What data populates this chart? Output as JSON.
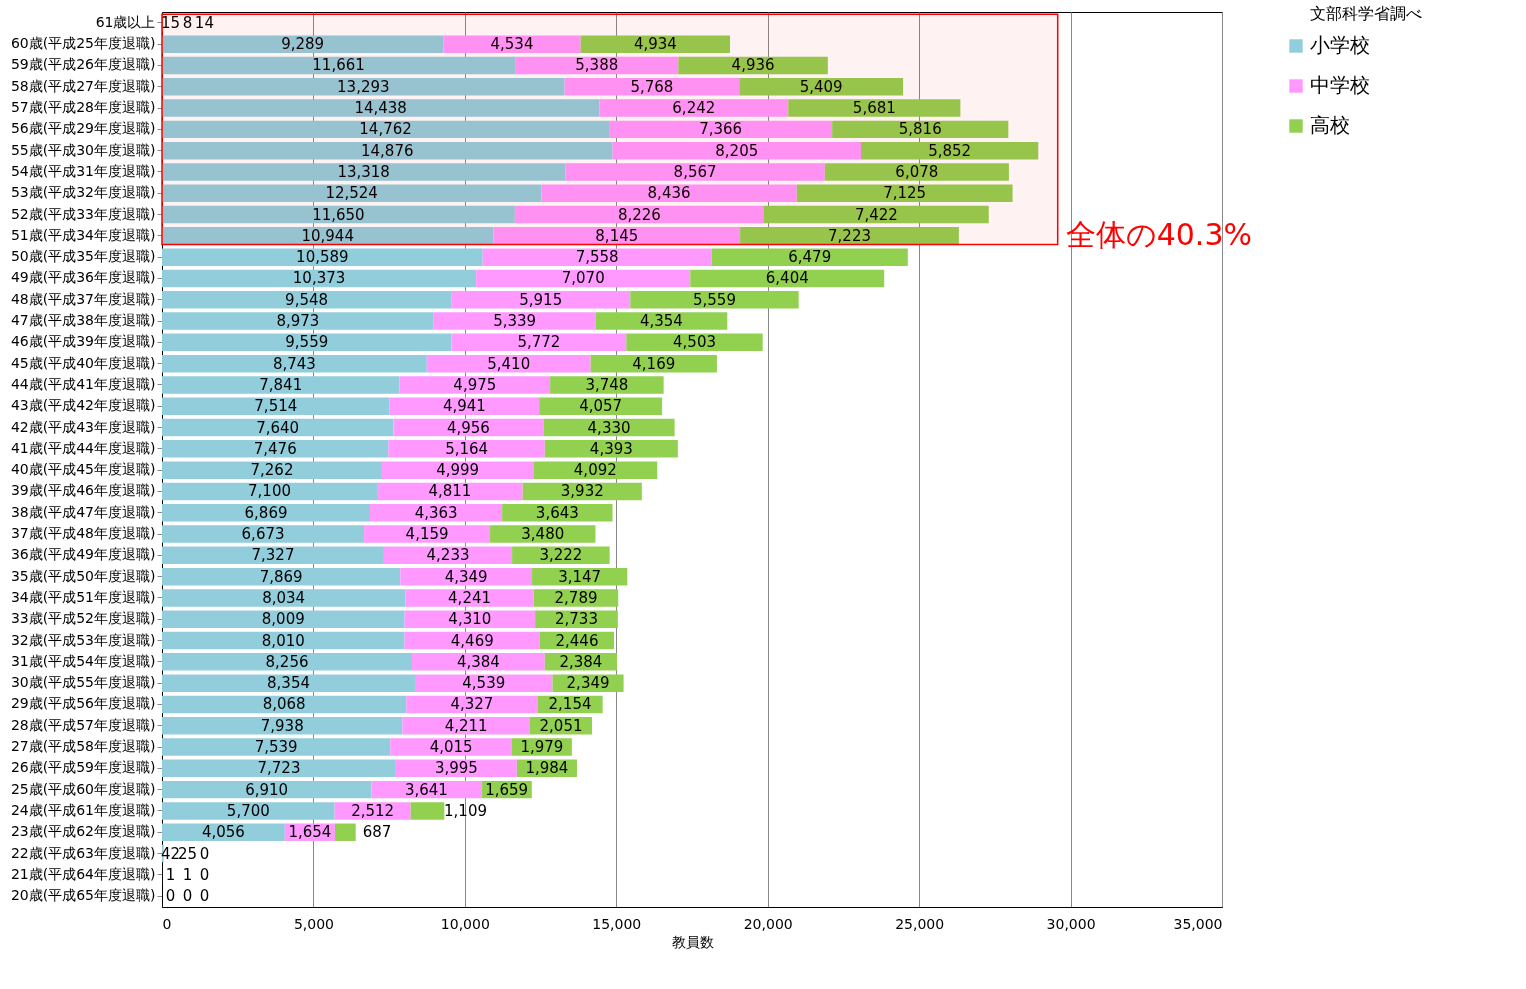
{
  "chart_data": {
    "type": "bar",
    "orientation": "horizontal",
    "stacked": true,
    "grid": "x",
    "legend": "right",
    "xlabel": "教員数",
    "annotations": [
      "文部科学省調べ"
    ],
    "bands": [
      {
        "axis": "y",
        "from": "61歳以上",
        "to": "51歳(平成34年度退職)",
        "label": "全体の40.3%",
        "color": "#ff0000"
      }
    ],
    "xlim": [
      0,
      35000
    ],
    "xticks": [
      {
        "value": 0,
        "label": "0"
      },
      {
        "value": 5000,
        "label": "5,000"
      },
      {
        "value": 10000,
        "label": "10,000"
      },
      {
        "value": 15000,
        "label": "15,000"
      },
      {
        "value": 20000,
        "label": "20,000"
      },
      {
        "value": 25000,
        "label": "25,000"
      },
      {
        "value": 30000,
        "label": "30,000"
      },
      {
        "value": 35000,
        "label": "35,000"
      }
    ],
    "categories": [
      "61歳以上",
      "60歳(平成25年度退職)",
      "59歳(平成26年度退職)",
      "58歳(平成27年度退職)",
      "57歳(平成28年度退職)",
      "56歳(平成29年度退職)",
      "55歳(平成30年度退職)",
      "54歳(平成31年度退職)",
      "53歳(平成32年度退職)",
      "52歳(平成33年度退職)",
      "51歳(平成34年度退職)",
      "50歳(平成35年度退職)",
      "49歳(平成36年度退職)",
      "48歳(平成37年度退職)",
      "47歳(平成38年度退職)",
      "46歳(平成39年度退職)",
      "45歳(平成40年度退職)",
      "44歳(平成41年度退職)",
      "43歳(平成42年度退職)",
      "42歳(平成43年度退職)",
      "41歳(平成44年度退職)",
      "40歳(平成45年度退職)",
      "39歳(平成46年度退職)",
      "38歳(平成47年度退職)",
      "37歳(平成48年度退職)",
      "36歳(平成49年度退職)",
      "35歳(平成50年度退職)",
      "34歳(平成51年度退職)",
      "33歳(平成52年度退職)",
      "32歳(平成53年度退職)",
      "31歳(平成54年度退職)",
      "30歳(平成55年度退職)",
      "29歳(平成56年度退職)",
      "28歳(平成57年度退職)",
      "27歳(平成58年度退職)",
      "26歳(平成59年度退職)",
      "25歳(平成60年度退職)",
      "24歳(平成61年度退職)",
      "23歳(平成62年度退職)",
      "22歳(平成63年度退職)",
      "21歳(平成64年度退職)",
      "20歳(平成65年度退職)"
    ],
    "series": [
      {
        "name": "小学校",
        "color": "#92cddc",
        "values": [
          15,
          9289,
          11661,
          13293,
          14438,
          14762,
          14876,
          13318,
          12524,
          11650,
          10944,
          10589,
          10373,
          9548,
          8973,
          9559,
          8743,
          7841,
          7514,
          7640,
          7476,
          7262,
          7100,
          6869,
          6673,
          7327,
          7869,
          8034,
          8009,
          8010,
          8256,
          8354,
          8068,
          7938,
          7539,
          7723,
          6910,
          5700,
          4056,
          42,
          1,
          0
        ],
        "value_labels": [
          "15",
          "9,289",
          "11,661",
          "13,293",
          "14,438",
          "14,762",
          "14,876",
          "13,318",
          "12,524",
          "11,650",
          "10,944",
          "10,589",
          "10,373",
          "9,548",
          "8,973",
          "9,559",
          "8,743",
          "7,841",
          "7,514",
          "7,640",
          "7,476",
          "7,262",
          "7,100",
          "6,869",
          "6,673",
          "7,327",
          "7,869",
          "8,034",
          "8,009",
          "8,010",
          "8,256",
          "8,354",
          "8,068",
          "7,938",
          "7,539",
          "7,723",
          "6,910",
          "5,700",
          "4,056",
          "42",
          "1",
          "0"
        ]
      },
      {
        "name": "中学校",
        "color": "#ff99ff",
        "values": [
          8,
          4534,
          5388,
          5768,
          6242,
          7366,
          8205,
          8567,
          8436,
          8226,
          8145,
          7558,
          7070,
          5915,
          5339,
          5772,
          5410,
          4975,
          4941,
          4956,
          5164,
          4999,
          4811,
          4363,
          4159,
          4233,
          4349,
          4241,
          4310,
          4469,
          4384,
          4539,
          4327,
          4211,
          4015,
          3995,
          3641,
          2512,
          1654,
          25,
          1,
          0
        ],
        "value_labels": [
          "8",
          "4,534",
          "5,388",
          "5,768",
          "6,242",
          "7,366",
          "8,205",
          "8,567",
          "8,436",
          "8,226",
          "8,145",
          "7,558",
          "7,070",
          "5,915",
          "5,339",
          "5,772",
          "5,410",
          "4,975",
          "4,941",
          "4,956",
          "5,164",
          "4,999",
          "4,811",
          "4,363",
          "4,159",
          "4,233",
          "4,349",
          "4,241",
          "4,310",
          "4,469",
          "4,384",
          "4,539",
          "4,327",
          "4,211",
          "4,015",
          "3,995",
          "3,641",
          "2,512",
          "1,654",
          "25",
          "1",
          "0"
        ]
      },
      {
        "name": "高校",
        "color": "#92d050",
        "values": [
          14,
          4934,
          4936,
          5409,
          5681,
          5816,
          5852,
          6078,
          7125,
          7422,
          7223,
          6479,
          6404,
          5559,
          4354,
          4503,
          4169,
          3748,
          4057,
          4330,
          4393,
          4092,
          3932,
          3643,
          3480,
          3222,
          3147,
          2789,
          2733,
          2446,
          2384,
          2349,
          2154,
          2051,
          1979,
          1984,
          1659,
          1109,
          687,
          0,
          0,
          0
        ],
        "value_labels": [
          "14",
          "4,934",
          "4,936",
          "5,409",
          "5,681",
          "5,816",
          "5,852",
          "6,078",
          "7,125",
          "7,422",
          "7,223",
          "6,479",
          "6,404",
          "5,559",
          "4,354",
          "4,503",
          "4,169",
          "3,748",
          "4,057",
          "4,330",
          "4,393",
          "4,092",
          "3,932",
          "3,643",
          "3,480",
          "3,222",
          "3,147",
          "2,789",
          "2,733",
          "2,446",
          "2,384",
          "2,349",
          "2,154",
          "2,051",
          "1,979",
          "1,984",
          "1,659",
          "1,109",
          "687",
          "0",
          "0",
          "0"
        ]
      }
    ]
  }
}
